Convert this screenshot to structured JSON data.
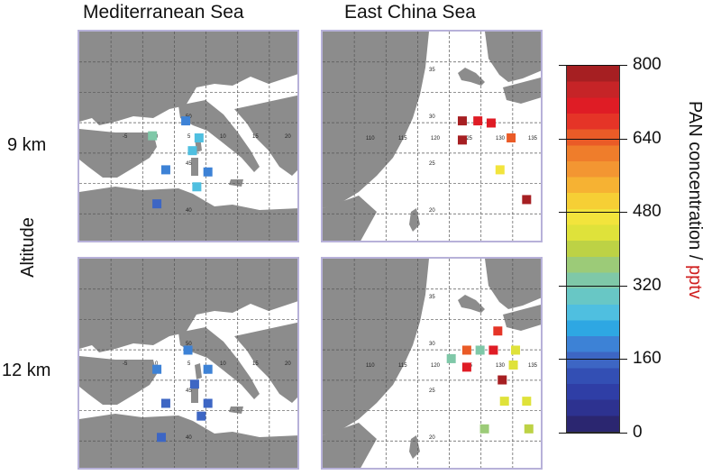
{
  "columns": [
    "Mediterranean Sea",
    "East China Sea"
  ],
  "rows": [
    "9 km",
    "12 km"
  ],
  "y_axis_label": "Altitude",
  "colorbar": {
    "title_main": "PAN concentration / ",
    "title_unit": "pptv",
    "unit_color": "#d02020",
    "ticks": [
      "800",
      "640",
      "480",
      "320",
      "160",
      "0"
    ],
    "levels": [
      "#2b2670",
      "#2d3290",
      "#2f3ea6",
      "#334fb4",
      "#3d66c4",
      "#3d82d6",
      "#2ea7e3",
      "#4fbfe0",
      "#68c7c5",
      "#7fc8a8",
      "#9ccb78",
      "#bdd245",
      "#dfe23a",
      "#f2e43c",
      "#f6cf35",
      "#f6b233",
      "#f39632",
      "#ef7d2b",
      "#ea5b27",
      "#e53427",
      "#df1c25",
      "#c62427",
      "#a61f22"
    ]
  },
  "land_color": "#8c8c8c",
  "grid_labels": {
    "med_lon": [
      "-5",
      "0",
      "5",
      "10",
      "15",
      "20"
    ],
    "med_lat": [
      "40",
      "45",
      "50"
    ],
    "ecs_lon": [
      "110",
      "115",
      "120",
      "125",
      "130",
      "135"
    ],
    "ecs_lat": [
      "20",
      "25",
      "30",
      "35"
    ]
  },
  "observations": [
    {
      "panel": "med-9km",
      "points": [
        {
          "x": 0.48,
          "y": 0.42,
          "v": 175
        },
        {
          "x": 0.33,
          "y": 0.49,
          "v": 330
        },
        {
          "x": 0.54,
          "y": 0.5,
          "v": 270
        },
        {
          "x": 0.51,
          "y": 0.56,
          "v": 265
        },
        {
          "x": 0.39,
          "y": 0.65,
          "v": 180
        },
        {
          "x": 0.58,
          "y": 0.66,
          "v": 190
        },
        {
          "x": 0.53,
          "y": 0.73,
          "v": 250
        },
        {
          "x": 0.35,
          "y": 0.81,
          "v": 170
        }
      ]
    },
    {
      "panel": "ecs-9km",
      "points": [
        {
          "x": 0.63,
          "y": 0.42,
          "v": 790
        },
        {
          "x": 0.7,
          "y": 0.42,
          "v": 700
        },
        {
          "x": 0.76,
          "y": 0.43,
          "v": 720
        },
        {
          "x": 0.85,
          "y": 0.5,
          "v": 640
        },
        {
          "x": 0.63,
          "y": 0.51,
          "v": 800
        },
        {
          "x": 0.8,
          "y": 0.65,
          "v": 470
        },
        {
          "x": 0.92,
          "y": 0.79,
          "v": 780
        }
      ]
    },
    {
      "panel": "med-12km",
      "points": [
        {
          "x": 0.49,
          "y": 0.43,
          "v": 175
        },
        {
          "x": 0.35,
          "y": 0.52,
          "v": 175
        },
        {
          "x": 0.58,
          "y": 0.52,
          "v": 175
        },
        {
          "x": 0.52,
          "y": 0.59,
          "v": 170
        },
        {
          "x": 0.39,
          "y": 0.68,
          "v": 170
        },
        {
          "x": 0.58,
          "y": 0.68,
          "v": 170
        },
        {
          "x": 0.55,
          "y": 0.74,
          "v": 165
        },
        {
          "x": 0.37,
          "y": 0.84,
          "v": 170
        }
      ]
    },
    {
      "panel": "ecs-12km",
      "points": [
        {
          "x": 0.79,
          "y": 0.34,
          "v": 680
        },
        {
          "x": 0.65,
          "y": 0.43,
          "v": 650
        },
        {
          "x": 0.71,
          "y": 0.43,
          "v": 340
        },
        {
          "x": 0.77,
          "y": 0.43,
          "v": 700
        },
        {
          "x": 0.87,
          "y": 0.43,
          "v": 450
        },
        {
          "x": 0.58,
          "y": 0.47,
          "v": 320
        },
        {
          "x": 0.65,
          "y": 0.51,
          "v": 700
        },
        {
          "x": 0.86,
          "y": 0.5,
          "v": 440
        },
        {
          "x": 0.81,
          "y": 0.57,
          "v": 780
        },
        {
          "x": 0.82,
          "y": 0.67,
          "v": 440
        },
        {
          "x": 0.92,
          "y": 0.67,
          "v": 440
        },
        {
          "x": 0.73,
          "y": 0.8,
          "v": 350
        },
        {
          "x": 0.93,
          "y": 0.8,
          "v": 400
        }
      ]
    }
  ]
}
